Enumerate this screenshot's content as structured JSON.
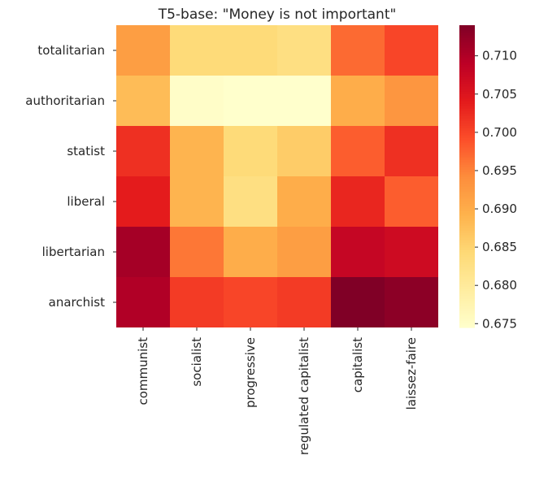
{
  "chart_data": {
    "type": "heatmap",
    "title": "T5-base: \"Money is not important\"",
    "rows": [
      "totalitarian",
      "authoritarian",
      "statist",
      "liberal",
      "libertarian",
      "anarchist"
    ],
    "columns": [
      "communist",
      "socialist",
      "progressive",
      "regulated capitalist",
      "capitalist",
      "laissez-faire"
    ],
    "values": [
      [
        0.692,
        0.684,
        0.684,
        0.683,
        0.697,
        0.7
      ],
      [
        0.688,
        0.675,
        0.6745,
        0.6745,
        0.69,
        0.693
      ],
      [
        0.702,
        0.689,
        0.684,
        0.686,
        0.698,
        0.702
      ],
      [
        0.704,
        0.689,
        0.683,
        0.69,
        0.703,
        0.698
      ],
      [
        0.711,
        0.696,
        0.69,
        0.692,
        0.708,
        0.707
      ],
      [
        0.71,
        0.701,
        0.7,
        0.701,
        0.714,
        0.713
      ]
    ],
    "colormap": "YlOrRd",
    "vmin": 0.6745,
    "vmax": 0.714,
    "colorbar_ticks": [
      "0.675",
      "0.680",
      "0.685",
      "0.690",
      "0.695",
      "0.700",
      "0.705",
      "0.710"
    ],
    "colorbar_location": "right",
    "grid": false
  }
}
